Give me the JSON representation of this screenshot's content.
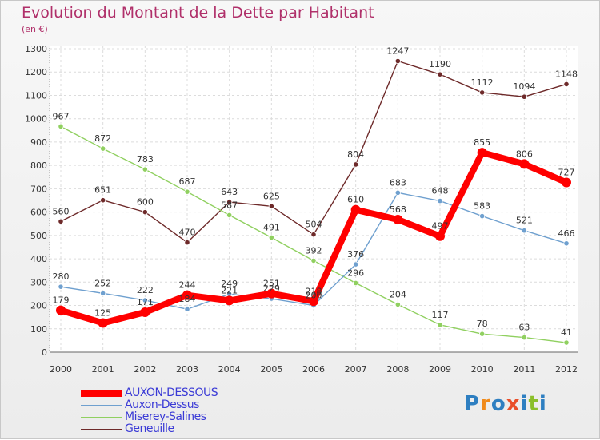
{
  "chart_data": {
    "type": "line",
    "title": "Evolution du Montant de la Dette par Habitant",
    "subtitle": "(en €)",
    "x": [
      "2000",
      "2001",
      "2002",
      "2003",
      "2004",
      "2005",
      "2006",
      "2007",
      "2008",
      "2009",
      "2010",
      "2011",
      "2012"
    ],
    "ylim": [
      0,
      1300
    ],
    "yticks": [
      0,
      100,
      200,
      300,
      400,
      500,
      600,
      700,
      800,
      900,
      1000,
      1100,
      1200,
      1300
    ],
    "grid": true,
    "legend_position": "bottom-left",
    "series": [
      {
        "name": "AUXON-DESSOUS",
        "color": "#ff0000",
        "values": [
          179,
          125,
          171,
          244,
          221,
          251,
          218,
          610,
          568,
          497,
          855,
          806,
          727
        ],
        "labels": [
          "179",
          "125",
          "171",
          "244",
          "221",
          "251",
          "218",
          "610",
          "568",
          "497",
          "855",
          "806",
          "727"
        ]
      },
      {
        "name": "Auxon-Dessus",
        "color": "#6fa0cf",
        "values": [
          280,
          252,
          222,
          184,
          249,
          229,
          200,
          376,
          683,
          648,
          583,
          521,
          466
        ],
        "labels": [
          "280",
          "252",
          "222",
          "184",
          "249",
          "229",
          "200",
          "376",
          "683",
          "648",
          "583",
          "521",
          "466"
        ]
      },
      {
        "name": "Miserey-Salines",
        "color": "#90d060",
        "values": [
          967,
          872,
          783,
          687,
          587,
          491,
          392,
          296,
          204,
          117,
          78,
          63,
          41
        ],
        "labels": [
          "967",
          "872",
          "783",
          "687",
          "587",
          "491",
          "392",
          "296",
          "204",
          "117",
          "78",
          "63",
          "41"
        ]
      },
      {
        "name": "Geneuille",
        "color": "#6e2a2a",
        "values": [
          560,
          651,
          600,
          470,
          643,
          625,
          504,
          804,
          1247,
          1190,
          1112,
          1094,
          1148
        ],
        "labels": [
          "560",
          "651",
          "600",
          "470",
          "643",
          "625",
          "504",
          "804",
          "1247",
          "1190",
          "1112",
          "1094",
          "1148"
        ]
      }
    ]
  },
  "logo": {
    "letters": [
      "P",
      "r",
      "o",
      "x",
      "i",
      "t",
      "i"
    ]
  }
}
